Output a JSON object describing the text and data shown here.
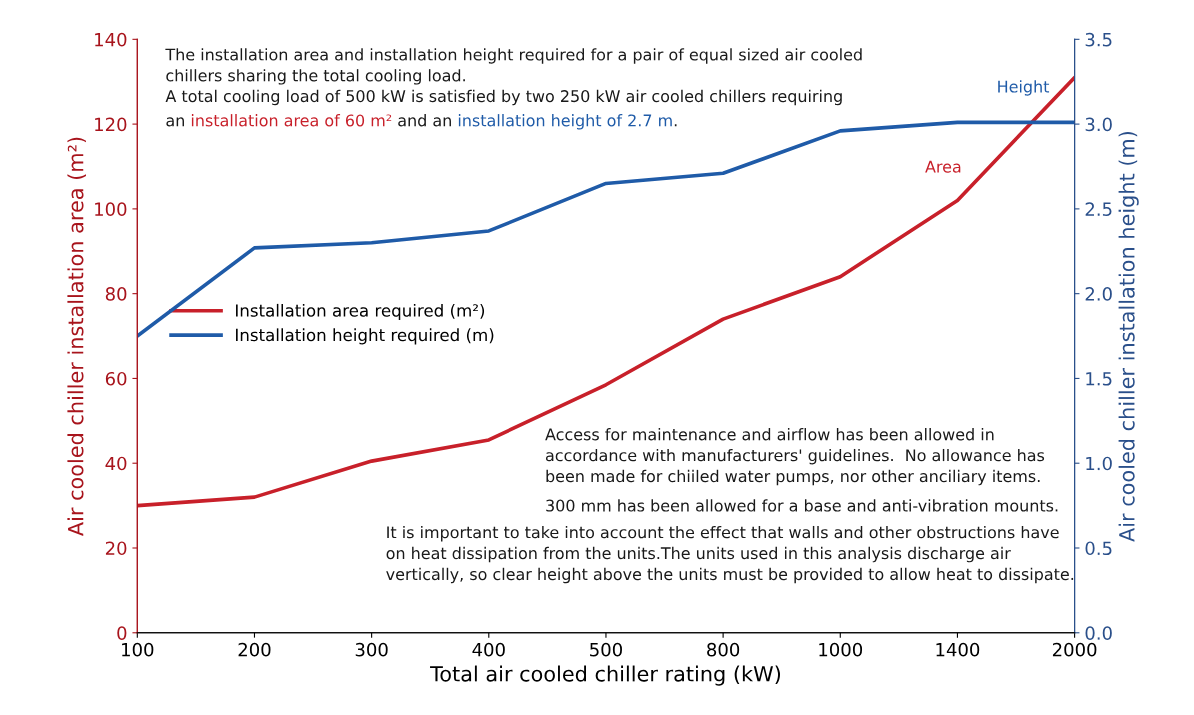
{
  "chart_data": {
    "type": "line",
    "categories": [
      "100",
      "200",
      "300",
      "400",
      "500",
      "800",
      "1000",
      "1400",
      "2000"
    ],
    "xlabel": "Total air cooled chiller rating (kW)",
    "ylabel": "Air cooled chiller installation area (m²)",
    "y2label": "Air cooled chiller installation height (m)",
    "series": [
      {
        "name": "Installation area required (m²)",
        "color": "#c8202a",
        "values": [
          30,
          32,
          40.5,
          45.5,
          58.5,
          74,
          84,
          102,
          131
        ]
      },
      {
        "name": "Installation height required (m)",
        "color": "#1f5ba8",
        "axis": "y2",
        "values": [
          1.75,
          2.27,
          2.3,
          2.37,
          2.65,
          2.71,
          2.96,
          3.01,
          3.01
        ]
      }
    ],
    "ylim": [
      0,
      140
    ],
    "yticks": [
      0,
      20,
      40,
      60,
      80,
      100,
      120,
      140
    ],
    "y2lim": [
      0,
      3.5
    ],
    "y2ticks": [
      {
        "value": 0,
        "label": "0.0"
      },
      0.5,
      {
        "value": 1,
        "label": "1.0"
      },
      1.5,
      {
        "value": 2,
        "label": "2.0"
      },
      2.5,
      {
        "value": 3,
        "label": "3.0"
      },
      3.5
    ],
    "grid": false,
    "legend": "left",
    "marker": "none",
    "line_style": "solid",
    "annotations": [
      "The installation area and installation height required for a pair of equal sized air cooled\nchillers sharing the total cooling load.",
      "A total cooling load of 500 kW is satisfied by two 250 kW air cooled chillers requiring",
      "an ",
      "installation area of 60 m²",
      " and an ",
      "installation height of 2.7 m",
      ".",
      "Access for maintenance and airflow has been allowed in\naccordance with manufacturers' guidelines.  No allowance has\nbeen made for chiiled water pumps, nor other anciliary items.",
      "300 mm has been allowed for a base and anti-vibration mounts.",
      "It is important to take into account the effect that walls and other obstructions have\non heat dissipation from the units.The units used in this analysis discharge air\nvertically, so clear height above the units must be provided to allow heat to dissipate.",
      "Height",
      "Area"
    ]
  }
}
